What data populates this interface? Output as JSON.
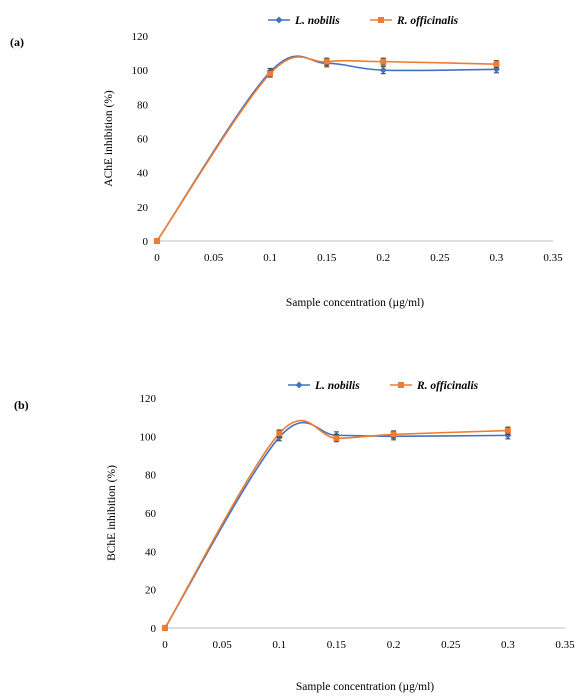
{
  "chart_data": [
    {
      "type": "line",
      "panel_label": "(a)",
      "xlabel": "Sample concentration (µg/ml)",
      "ylabel": "AChE inhibition (%)",
      "xlim": [
        0,
        0.35
      ],
      "ylim": [
        0,
        120
      ],
      "x_ticks": [
        "0",
        "0.05",
        "0.1",
        "0.15",
        "0.2",
        "0.25",
        "0.3",
        "0.35"
      ],
      "y_ticks": [
        "0",
        "20",
        "40",
        "60",
        "80",
        "100",
        "120"
      ],
      "legend": "top-center",
      "grid": false,
      "series": [
        {
          "name": "L. nobilis",
          "color": "#4472c4",
          "marker": "diamond",
          "x": [
            0,
            0.1,
            0.15,
            0.2,
            0.3
          ],
          "y": [
            0,
            99,
            104,
            100,
            100.5
          ]
        },
        {
          "name": "R. officinalis",
          "color": "#ed7d31",
          "marker": "square",
          "x": [
            0,
            0.1,
            0.15,
            0.2,
            0.3
          ],
          "y": [
            0,
            98,
            105,
            105,
            103.5
          ]
        }
      ]
    },
    {
      "type": "line",
      "panel_label": "(b)",
      "xlabel": "Sample concentration (µg/ml)",
      "ylabel": "BChE inhibition (%)",
      "xlim": [
        0,
        0.35
      ],
      "ylim": [
        0,
        120
      ],
      "x_ticks": [
        "0",
        "0.05",
        "0.1",
        "0.15",
        "0.2",
        "0.25",
        "0.3",
        "0.35"
      ],
      "y_ticks": [
        "0",
        "20",
        "40",
        "60",
        "80",
        "100",
        "120"
      ],
      "legend": "top-center",
      "grid": false,
      "series": [
        {
          "name": "L. nobilis",
          "color": "#4472c4",
          "marker": "diamond",
          "x": [
            0,
            0.1,
            0.15,
            0.2,
            0.3
          ],
          "y": [
            0,
            99.5,
            100.5,
            100,
            100.5
          ]
        },
        {
          "name": "R. officinalis",
          "color": "#ed7d31",
          "marker": "square",
          "x": [
            0,
            0.1,
            0.15,
            0.2,
            0.3
          ],
          "y": [
            0,
            101.5,
            99,
            101,
            103
          ]
        }
      ]
    }
  ]
}
